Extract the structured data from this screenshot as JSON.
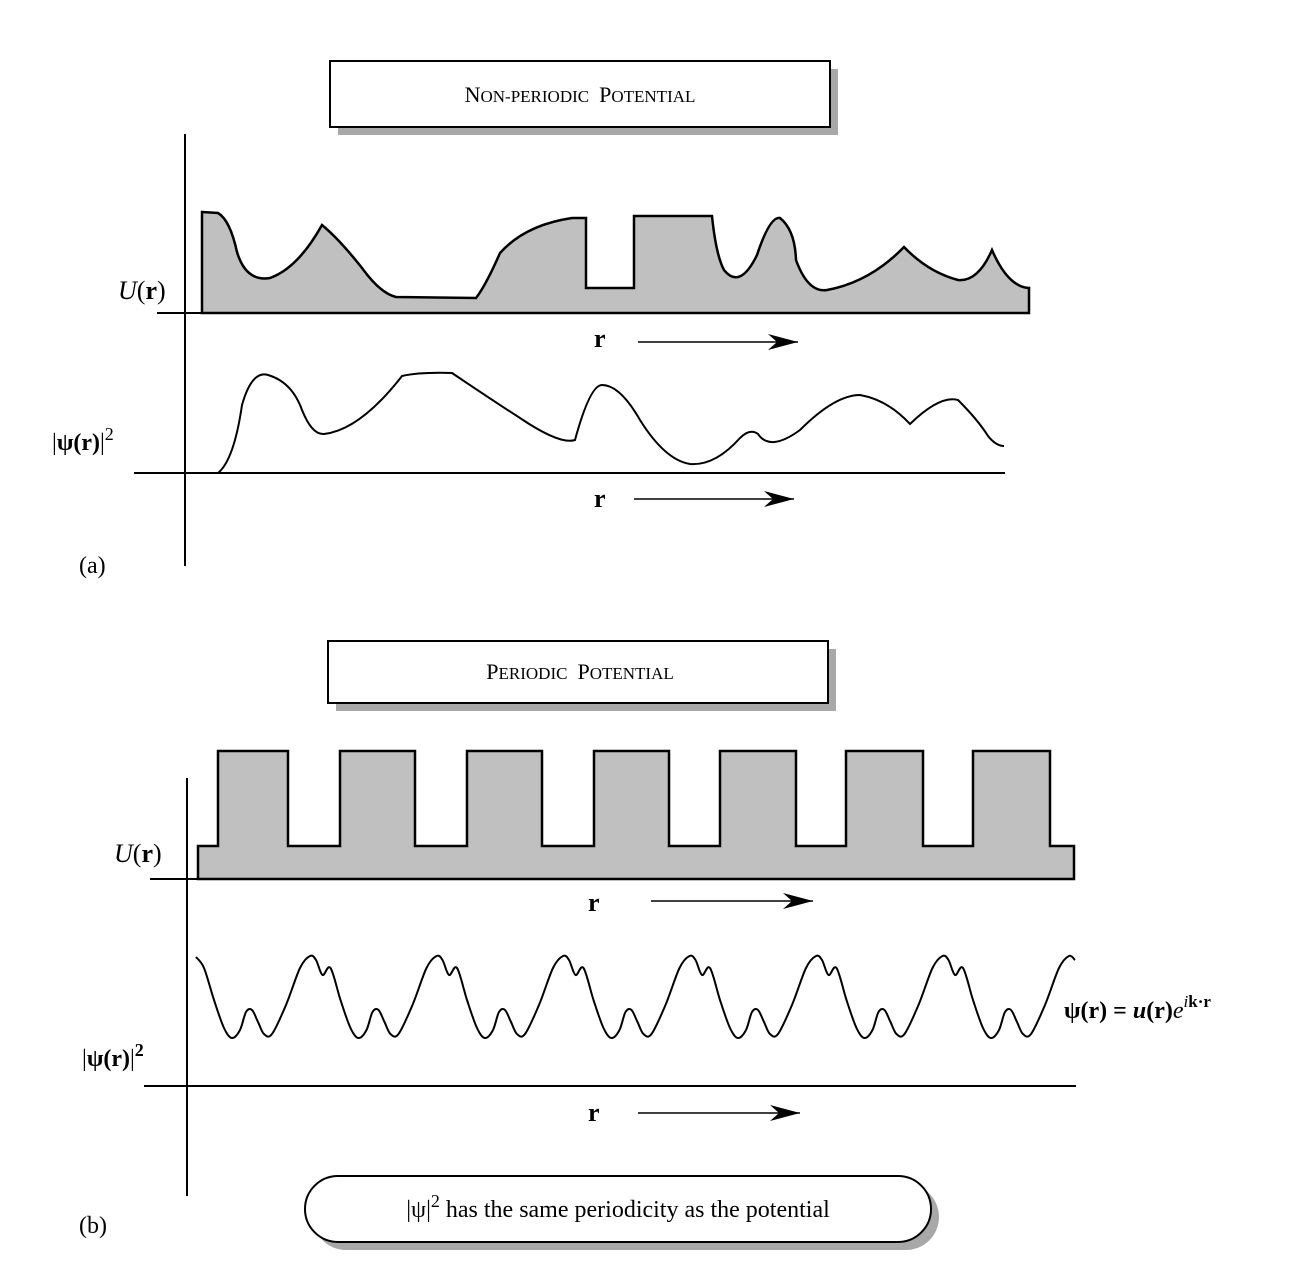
{
  "panel_a": {
    "title": {
      "initial1": "N",
      "rest1": "ON-PERIODIC",
      "initial2": "P",
      "rest2": "OTENTIAL"
    },
    "u_label": {
      "prefix": "U",
      "open": "(",
      "r": "r",
      "close": ")"
    },
    "psi_label": {
      "bar1": "|",
      "psi": "ψ",
      "open": "(",
      "r": "r",
      "close": ")",
      "bar2": "|",
      "exp": "2"
    },
    "r_label_top": "r",
    "r_label_bottom": "r",
    "panel_label": "(a)"
  },
  "panel_b": {
    "title": {
      "initial1": "P",
      "rest1": "ERIODIC",
      "initial2": "P",
      "rest2": "OTENTIAL"
    },
    "u_label": {
      "prefix": "U",
      "open": "(",
      "r": "r",
      "close": ")"
    },
    "psi_label": {
      "bar1": "|",
      "psi": "ψ",
      "open": "(",
      "r": "r",
      "close": ")",
      "bar2": "|",
      "exp": "2"
    },
    "r_label_top": "r",
    "r_label_bottom": "r",
    "panel_label": "(b)",
    "equation": {
      "psi": "ψ",
      "r1": "(r)",
      "eq": " = ",
      "u": "u",
      "r2": "(r)",
      "e": "e",
      "exp_i": "i",
      "exp_k": "k",
      "exp_dot": "·",
      "exp_r": "r"
    },
    "note": {
      "psi": "|ψ|",
      "exp": "2",
      "text": " has the same periodicity as the potential"
    }
  },
  "colors": {
    "fill": "#c0c0c0",
    "shadow": "#a8a8a8",
    "line": "#000000",
    "background": "#ffffff"
  }
}
